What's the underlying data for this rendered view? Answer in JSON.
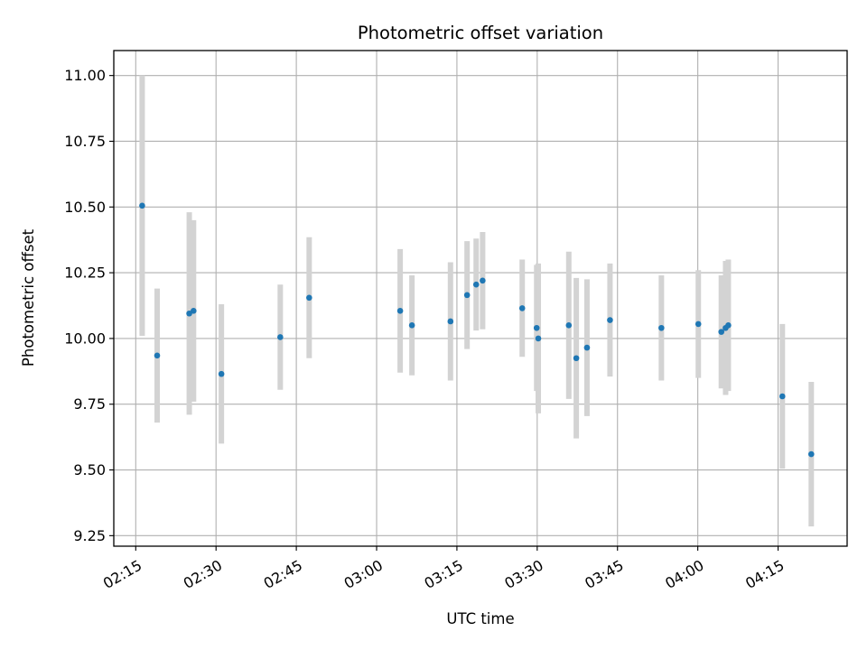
{
  "chart_data": {
    "type": "scatter",
    "title": "Photometric offset variation",
    "xlabel": "UTC time",
    "ylabel": "Photometric offset",
    "x_ticks": [
      "02:15",
      "02:30",
      "02:45",
      "03:00",
      "03:15",
      "03:30",
      "03:45",
      "04:00",
      "04:15"
    ],
    "y_ticks": [
      "9.25",
      "9.50",
      "9.75",
      "10.00",
      "10.25",
      "10.50",
      "10.75",
      "11.00"
    ],
    "xlim": [
      "02:10:54",
      "04:27:54"
    ],
    "ylim": [
      9.21,
      11.095
    ],
    "grid": true,
    "colors": {
      "point": "#1f77b4",
      "errorbar": "#d3d3d3",
      "grid": "#b0b0b0"
    },
    "series": [
      {
        "points": [
          {
            "x": "02:16:12",
            "y": 10.505,
            "yerr": 0.495
          },
          {
            "x": "02:19:00",
            "y": 9.935,
            "yerr": 0.255
          },
          {
            "x": "02:25:00",
            "y": 10.095,
            "yerr": 0.385
          },
          {
            "x": "02:25:48",
            "y": 10.105,
            "yerr": 0.345
          },
          {
            "x": "02:31:00",
            "y": 9.865,
            "yerr": 0.265
          },
          {
            "x": "02:42:00",
            "y": 10.005,
            "yerr": 0.2
          },
          {
            "x": "02:47:24",
            "y": 10.155,
            "yerr": 0.23
          },
          {
            "x": "03:04:24",
            "y": 10.105,
            "yerr": 0.235
          },
          {
            "x": "03:06:36",
            "y": 10.05,
            "yerr": 0.19
          },
          {
            "x": "03:13:48",
            "y": 10.065,
            "yerr": 0.225
          },
          {
            "x": "03:16:54",
            "y": 10.165,
            "yerr": 0.205
          },
          {
            "x": "03:18:36",
            "y": 10.205,
            "yerr": 0.175
          },
          {
            "x": "03:19:48",
            "y": 10.22,
            "yerr": 0.185
          },
          {
            "x": "03:27:12",
            "y": 10.115,
            "yerr": 0.185
          },
          {
            "x": "03:29:54",
            "y": 10.04,
            "yerr": 0.24
          },
          {
            "x": "03:30:12",
            "y": 10.0,
            "yerr": 0.285
          },
          {
            "x": "03:35:54",
            "y": 10.05,
            "yerr": 0.28
          },
          {
            "x": "03:37:18",
            "y": 9.925,
            "yerr": 0.305
          },
          {
            "x": "03:39:18",
            "y": 9.965,
            "yerr": 0.26
          },
          {
            "x": "03:43:36",
            "y": 10.07,
            "yerr": 0.215
          },
          {
            "x": "03:53:12",
            "y": 10.04,
            "yerr": 0.2
          },
          {
            "x": "04:00:06",
            "y": 10.055,
            "yerr": 0.205
          },
          {
            "x": "04:04:24",
            "y": 10.025,
            "yerr": 0.215
          },
          {
            "x": "04:05:12",
            "y": 10.04,
            "yerr": 0.255
          },
          {
            "x": "04:05:42",
            "y": 10.05,
            "yerr": 0.25
          },
          {
            "x": "04:15:48",
            "y": 9.78,
            "yerr": 0.275
          },
          {
            "x": "04:21:12",
            "y": 9.56,
            "yerr": 0.275
          }
        ]
      }
    ]
  }
}
